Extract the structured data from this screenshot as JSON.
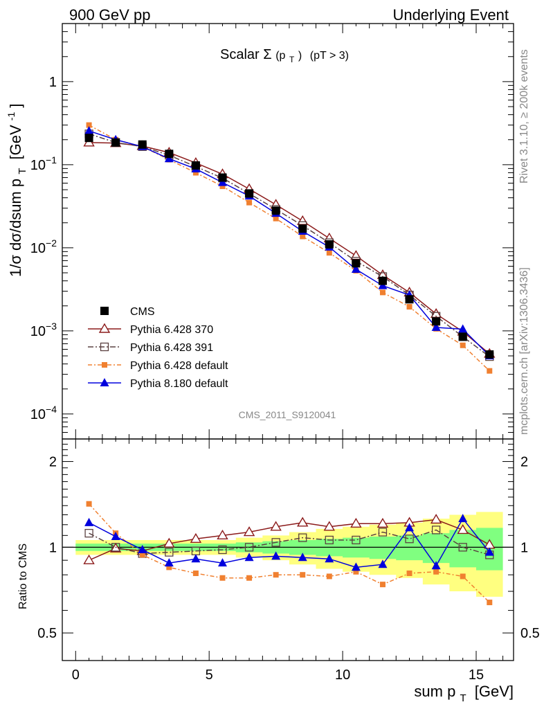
{
  "header": {
    "left": "900 GeV pp",
    "right": "Underlying Event",
    "plot_title_main": "Scalar ",
    "plot_title_sigma": "Σ",
    "plot_title_arg": "(p",
    "plot_title_sub": "T",
    "plot_title_close": ")",
    "plot_title_cut": "(pT >  3)",
    "side_rivet": "Rivet 3.1.10, ≥ 200k events",
    "side_mcplots": "mcplots.cern.ch [arXiv:1306.3436]",
    "analysis_id": "CMS_2011_S9120041"
  },
  "axes": {
    "ylabel_top_main": "1/σ dσ/dsum p",
    "ylabel_top_sub": "T",
    "ylabel_top_unit": "[GeV",
    "ylabel_top_exp": "-1",
    "ylabel_top_close": "]",
    "ylabel_ratio": "Ratio to CMS",
    "xlabel_main": "sum p",
    "xlabel_sub": "T",
    "xlabel_unit": "[GeV]",
    "top_yticks": [
      {
        "base": "1",
        "exp": ""
      },
      {
        "base": "10",
        "exp": "−1"
      },
      {
        "base": "10",
        "exp": "−2"
      },
      {
        "base": "10",
        "exp": "−3"
      },
      {
        "base": "10",
        "exp": "−4"
      }
    ],
    "ratio_yticks": [
      "2",
      "1",
      "0.5"
    ],
    "xticks": [
      "0",
      "5",
      "10",
      "15"
    ]
  },
  "legend": [
    {
      "label": "CMS",
      "key": "cms"
    },
    {
      "label": "Pythia 6.428 370",
      "key": "p370"
    },
    {
      "label": "Pythia 6.428 391",
      "key": "p391"
    },
    {
      "label": "Pythia 6.428 default",
      "key": "p6def"
    },
    {
      "label": "Pythia 8.180 default",
      "key": "p8def"
    }
  ],
  "colors": {
    "cms": "#000000",
    "p370": "#8b1a1a",
    "p391": "#5a4040",
    "p6def": "#f08030",
    "p8def": "#0000dd",
    "band_inner": "#80ff80",
    "band_outer": "#ffff80",
    "grey_text": "#888888"
  },
  "chart_data": {
    "type": "line",
    "x": [
      0.5,
      1.5,
      2.5,
      3.5,
      4.5,
      5.5,
      6.5,
      7.5,
      8.5,
      9.5,
      10.5,
      11.5,
      12.5,
      13.5,
      14.5,
      15.5
    ],
    "xlim": [
      -0.5,
      16.4
    ],
    "top_ylim": [
      5e-05,
      5
    ],
    "ratio_ylim": [
      0.4,
      2.4
    ],
    "series": [
      {
        "key": "cms",
        "name": "CMS",
        "values": [
          0.21,
          0.185,
          0.175,
          0.135,
          0.098,
          0.07,
          0.045,
          0.028,
          0.017,
          0.011,
          0.0065,
          0.004,
          0.0024,
          0.0013,
          0.00085,
          0.00052
        ]
      },
      {
        "key": "p370",
        "name": "Pythia 6.428 370",
        "values": [
          0.185,
          0.182,
          0.168,
          0.14,
          0.105,
          0.077,
          0.051,
          0.033,
          0.021,
          0.013,
          0.008,
          0.0047,
          0.0029,
          0.0016,
          0.00098,
          0.00053
        ]
      },
      {
        "key": "p391",
        "name": "Pythia 6.428 391",
        "values": [
          0.235,
          0.185,
          0.165,
          0.13,
          0.095,
          0.069,
          0.045,
          0.029,
          0.0185,
          0.0115,
          0.0069,
          0.0045,
          0.0027,
          0.0015,
          0.00085,
          0.00049
        ]
      },
      {
        "key": "p6def",
        "name": "Pythia 6.428 default",
        "values": [
          0.3,
          0.2,
          0.165,
          0.115,
          0.08,
          0.055,
          0.035,
          0.0225,
          0.0137,
          0.0087,
          0.0053,
          0.0029,
          0.00195,
          0.00106,
          0.00067,
          0.00033
        ]
      },
      {
        "key": "p8def",
        "name": "Pythia 8.180 default",
        "values": [
          0.255,
          0.2,
          0.165,
          0.118,
          0.089,
          0.061,
          0.042,
          0.026,
          0.0158,
          0.0102,
          0.0055,
          0.0035,
          0.0027,
          0.0011,
          0.00105,
          0.0005
        ]
      }
    ],
    "ratio_series": [
      {
        "key": "p370",
        "values": [
          0.9,
          0.99,
          0.97,
          1.03,
          1.07,
          1.1,
          1.13,
          1.18,
          1.22,
          1.18,
          1.21,
          1.21,
          1.22,
          1.25,
          1.15,
          1.02
        ]
      },
      {
        "key": "p391",
        "values": [
          1.12,
          1.0,
          0.95,
          0.96,
          0.97,
          0.98,
          1.0,
          1.04,
          1.08,
          1.06,
          1.06,
          1.13,
          1.07,
          1.15,
          1.0,
          0.94
        ]
      },
      {
        "key": "p6def",
        "values": [
          1.42,
          1.12,
          0.94,
          0.85,
          0.81,
          0.78,
          0.78,
          0.8,
          0.8,
          0.79,
          0.82,
          0.74,
          0.81,
          0.82,
          0.79,
          0.64
        ]
      },
      {
        "key": "p8def",
        "values": [
          1.22,
          1.09,
          0.98,
          0.88,
          0.91,
          0.88,
          0.92,
          0.93,
          0.92,
          0.91,
          0.85,
          0.87,
          1.17,
          0.86,
          1.26,
          0.96
        ]
      }
    ],
    "band_inner": [
      0.03,
      0.03,
      0.03,
      0.03,
      0.03,
      0.03,
      0.04,
      0.05,
      0.06,
      0.07,
      0.08,
      0.09,
      0.1,
      0.12,
      0.15,
      0.17
    ],
    "band_outer": [
      0.06,
      0.06,
      0.06,
      0.06,
      0.06,
      0.06,
      0.08,
      0.1,
      0.13,
      0.16,
      0.18,
      0.2,
      0.22,
      0.26,
      0.3,
      0.33
    ]
  }
}
